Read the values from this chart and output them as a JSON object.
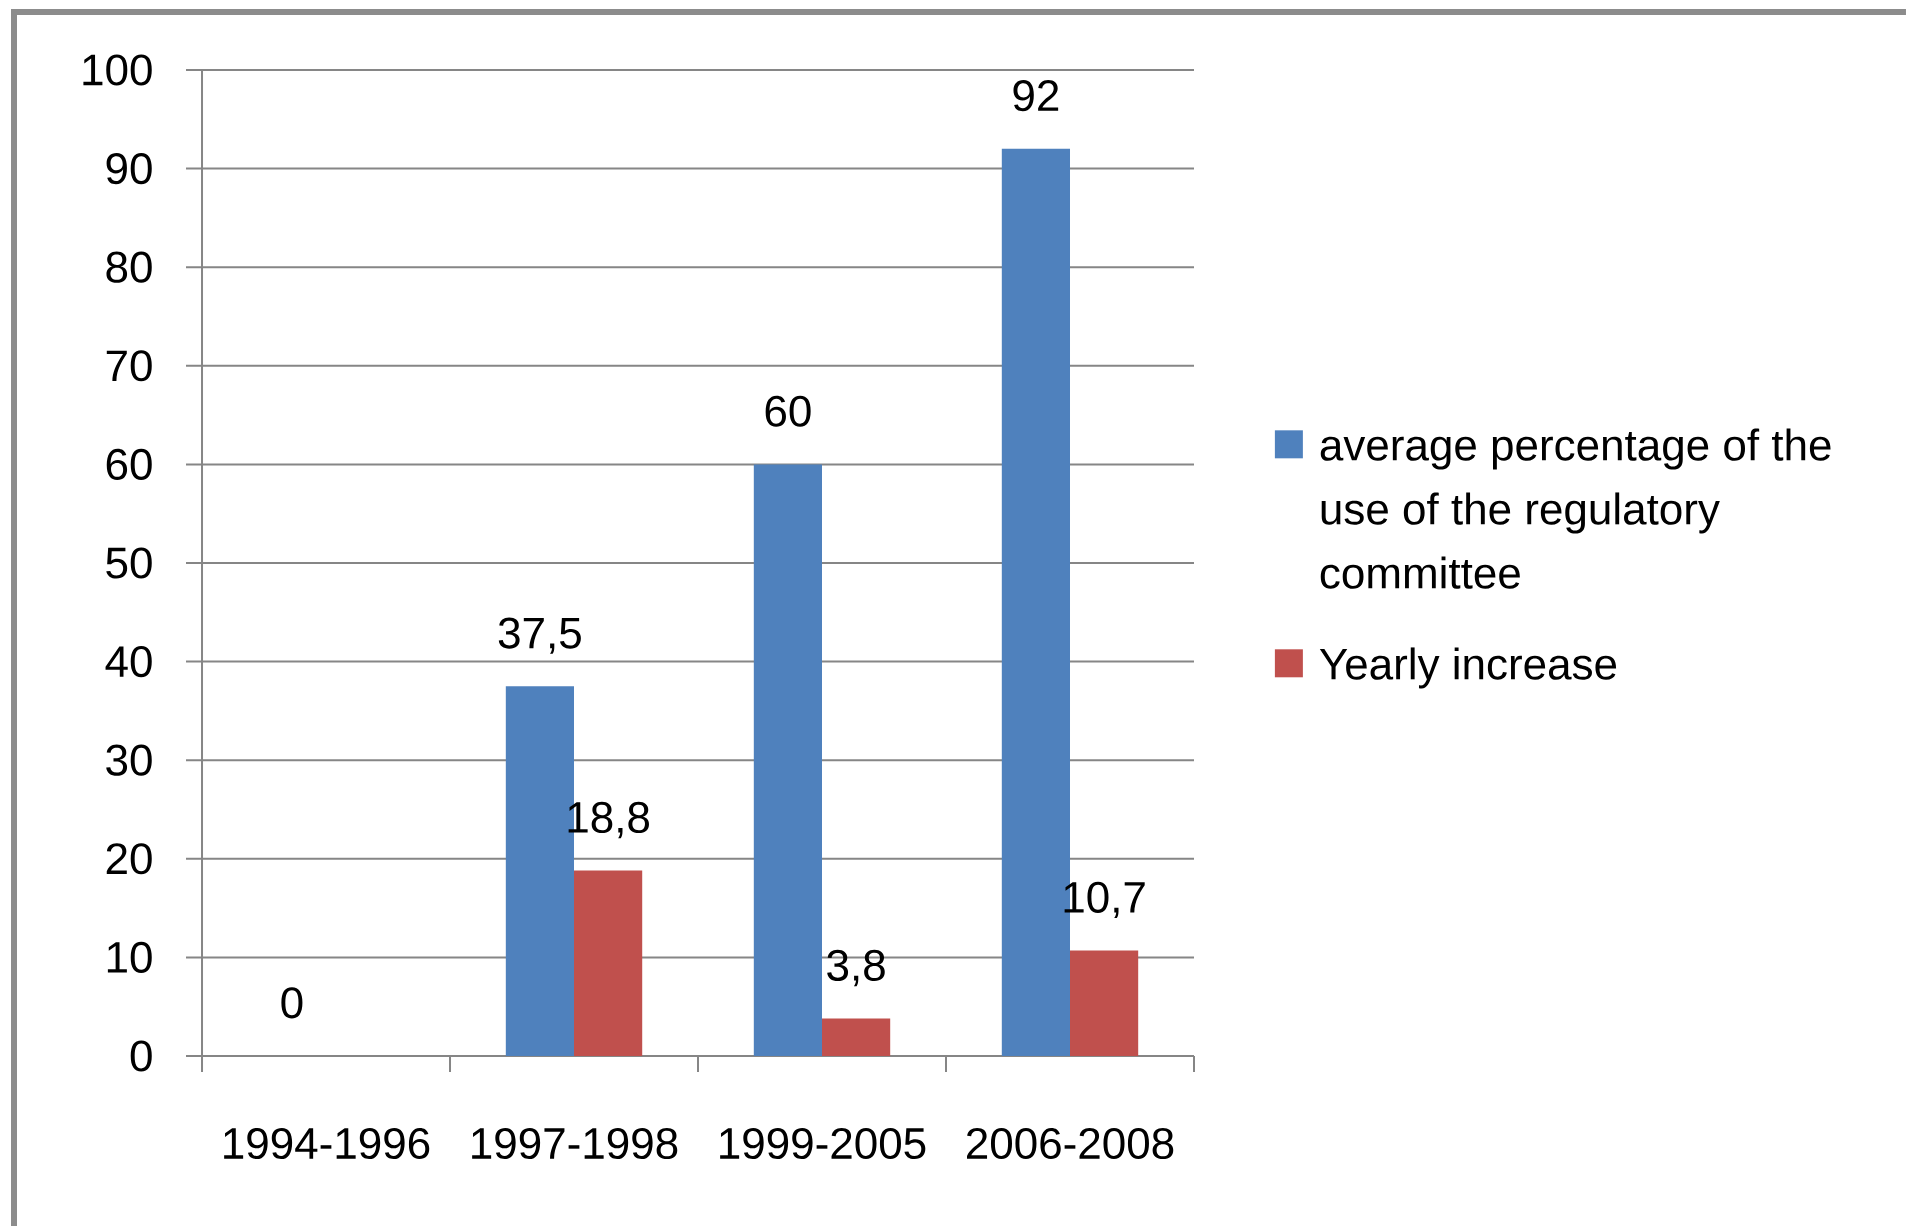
{
  "chart_data": {
    "type": "bar",
    "categories": [
      "1994-1996",
      "1997-1998",
      "1999-2005",
      "2006-2008"
    ],
    "series": [
      {
        "name": "average percentage of the use of the regulatory committee",
        "color": "#4f81bd",
        "values": [
          0,
          37.5,
          60,
          92
        ],
        "value_labels": [
          "0",
          "37,5",
          "60",
          "92"
        ]
      },
      {
        "name": "Yearly increase",
        "color": "#c0504d",
        "values": [
          null,
          18.8,
          3.8,
          10.7
        ],
        "value_labels": [
          null,
          "18,8",
          "3,8",
          "10,7"
        ]
      }
    ],
    "ylim": [
      0,
      100
    ],
    "yticks": [
      0,
      10,
      20,
      30,
      40,
      50,
      60,
      70,
      80,
      90,
      100
    ],
    "grid": "y",
    "legend": "right"
  }
}
